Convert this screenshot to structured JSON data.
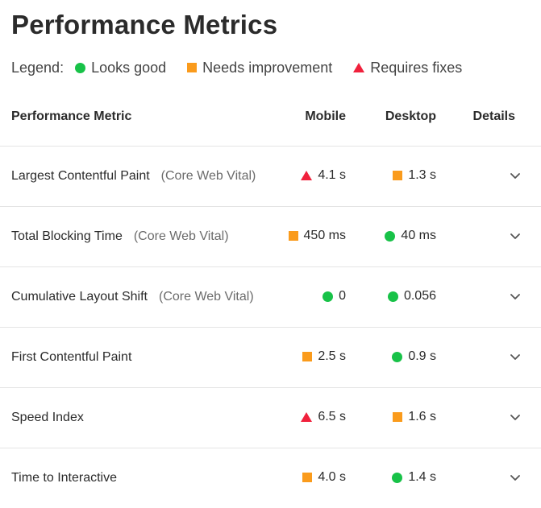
{
  "page_title": "Performance Metrics",
  "legend": {
    "title": "Legend:",
    "items": [
      {
        "label": "Looks good",
        "status": "good"
      },
      {
        "label": "Needs improvement",
        "status": "avg"
      },
      {
        "label": "Requires fixes",
        "status": "poor"
      }
    ]
  },
  "colors": {
    "good": "#18c248",
    "avg": "#fa9b1c",
    "poor": "#f0213c"
  },
  "table": {
    "headers": {
      "metric": "Performance Metric",
      "mobile": "Mobile",
      "desktop": "Desktop",
      "details": "Details"
    },
    "rows": [
      {
        "name": "Largest Contentful Paint",
        "tag": "(Core Web Vital)",
        "mobile": {
          "value": "4.1 s",
          "status": "poor"
        },
        "desktop": {
          "value": "1.3 s",
          "status": "avg"
        },
        "details_icon": "chevron-down-icon"
      },
      {
        "name": "Total Blocking Time",
        "tag": "(Core Web Vital)",
        "mobile": {
          "value": "450 ms",
          "status": "avg"
        },
        "desktop": {
          "value": "40 ms",
          "status": "good"
        },
        "details_icon": "chevron-down-icon"
      },
      {
        "name": "Cumulative Layout Shift",
        "tag": "(Core Web Vital)",
        "mobile": {
          "value": "0",
          "status": "good"
        },
        "desktop": {
          "value": "0.056",
          "status": "good"
        },
        "details_icon": "chevron-down-icon"
      },
      {
        "name": "First Contentful Paint",
        "tag": "",
        "mobile": {
          "value": "2.5 s",
          "status": "avg"
        },
        "desktop": {
          "value": "0.9 s",
          "status": "good"
        },
        "details_icon": "chevron-down-icon"
      },
      {
        "name": "Speed Index",
        "tag": "",
        "mobile": {
          "value": "6.5 s",
          "status": "poor"
        },
        "desktop": {
          "value": "1.6 s",
          "status": "avg"
        },
        "details_icon": "chevron-down-icon"
      },
      {
        "name": "Time to Interactive",
        "tag": "",
        "mobile": {
          "value": "4.0 s",
          "status": "avg"
        },
        "desktop": {
          "value": "1.4 s",
          "status": "good"
        },
        "details_icon": "chevron-down-icon"
      }
    ]
  }
}
